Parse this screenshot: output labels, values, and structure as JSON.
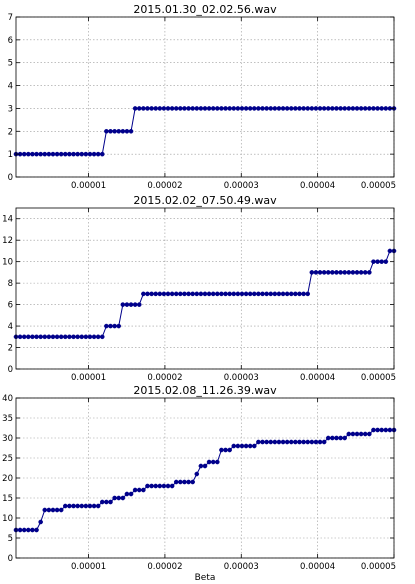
{
  "chart_data": [
    {
      "type": "line",
      "title": "2015.01.30_02.02.56.wav",
      "xlabel": "",
      "ylabel": "",
      "xlim": [
        5e-07,
        5e-05
      ],
      "ylim": [
        0,
        7
      ],
      "xticks": [
        1e-05,
        2e-05,
        3e-05,
        4e-05,
        5e-05
      ],
      "xtick_labels": [
        "0.00001",
        "0.00002",
        "0.00003",
        "0.00004",
        "0.00005"
      ],
      "yticks": [
        0,
        1,
        2,
        3,
        4,
        5,
        6,
        7
      ],
      "ytick_labels": [
        "0",
        "1",
        "2",
        "3",
        "4",
        "5",
        "6",
        "7"
      ],
      "grid": true,
      "color": "#00008b",
      "steps": [
        [
          5e-07,
          1
        ],
        [
          1.2e-05,
          2
        ],
        [
          1.6e-05,
          3
        ],
        [
          5e-05,
          3
        ]
      ]
    },
    {
      "type": "line",
      "title": "2015.02.02_07.50.49.wav",
      "xlabel": "",
      "ylabel": "",
      "xlim": [
        5e-07,
        5e-05
      ],
      "ylim": [
        0,
        15
      ],
      "xticks": [
        1e-05,
        2e-05,
        3e-05,
        4e-05,
        5e-05
      ],
      "xtick_labels": [
        "0.00001",
        "0.00002",
        "0.00003",
        "0.00004",
        "0.00005"
      ],
      "yticks": [
        0,
        2,
        4,
        6,
        8,
        10,
        12,
        14
      ],
      "ytick_labels": [
        "0",
        "2",
        "4",
        "6",
        "8",
        "10",
        "12",
        "14"
      ],
      "grid": true,
      "color": "#00008b",
      "steps": [
        [
          5e-07,
          3
        ],
        [
          1.2e-05,
          4
        ],
        [
          1.4e-05,
          6
        ],
        [
          1.7e-05,
          7
        ],
        [
          3.9e-05,
          9
        ],
        [
          4.7e-05,
          10
        ],
        [
          4.9e-05,
          11
        ],
        [
          5e-05,
          11
        ]
      ]
    },
    {
      "type": "line",
      "title": "2015.02.08_11.26.39.wav",
      "xlabel": "Beta",
      "ylabel": "",
      "xlim": [
        5e-07,
        5e-05
      ],
      "ylim": [
        0,
        40
      ],
      "xticks": [
        1e-05,
        2e-05,
        3e-05,
        4e-05,
        5e-05
      ],
      "xtick_labels": [
        "0.00001",
        "0.00002",
        "0.00003",
        "0.00004",
        "0.00005"
      ],
      "yticks": [
        0,
        5,
        10,
        15,
        20,
        25,
        30,
        35,
        40
      ],
      "ytick_labels": [
        "0",
        "5",
        "10",
        "15",
        "20",
        "25",
        "30",
        "35",
        "40"
      ],
      "grid": true,
      "color": "#00008b",
      "steps": [
        [
          5e-07,
          7
        ],
        [
          3.5e-06,
          9
        ],
        [
          4e-06,
          12
        ],
        [
          6.5e-06,
          13
        ],
        [
          1.15e-05,
          14
        ],
        [
          1.3e-05,
          15
        ],
        [
          1.5e-05,
          16
        ],
        [
          1.6e-05,
          17
        ],
        [
          1.75e-05,
          18
        ],
        [
          2.1e-05,
          19
        ],
        [
          2.4e-05,
          21
        ],
        [
          2.45e-05,
          23
        ],
        [
          2.55e-05,
          24
        ],
        [
          2.7e-05,
          27
        ],
        [
          2.85e-05,
          28
        ],
        [
          3.2e-05,
          29
        ],
        [
          4.1e-05,
          30
        ],
        [
          4.4e-05,
          31
        ],
        [
          4.7e-05,
          32
        ],
        [
          5e-05,
          32
        ]
      ]
    }
  ]
}
